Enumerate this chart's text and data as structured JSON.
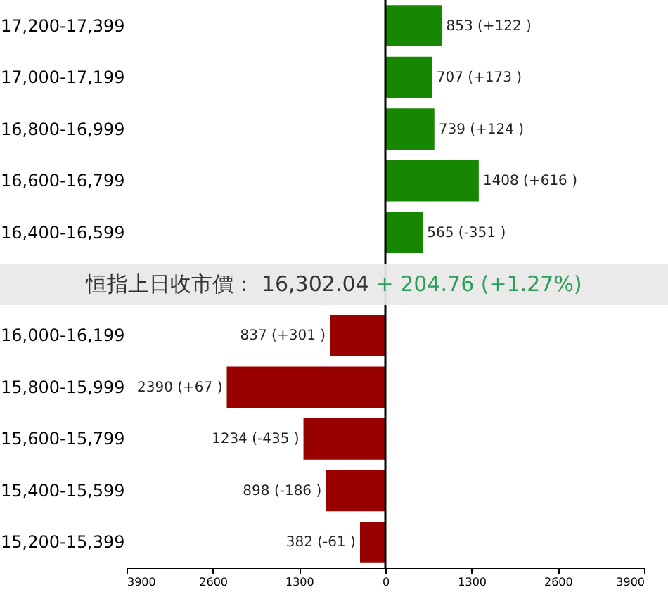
{
  "chart_data": {
    "type": "bar",
    "orientation": "horizontal",
    "categories": [
      "17,200-17,399",
      "17,000-17,199",
      "16,800-16,999",
      "16,600-16,799",
      "16,400-16,599",
      "16,000-16,199",
      "15,800-15,999",
      "15,600-15,799",
      "15,400-15,599",
      "15,200-15,399"
    ],
    "values": [
      853,
      707,
      739,
      1408,
      565,
      837,
      2390,
      1234,
      898,
      382
    ],
    "base": [
      0,
      0,
      0,
      0,
      0,
      -837,
      -2390,
      -1234,
      -898,
      -382
    ],
    "ref_lines": [
      {
        "axis": "x",
        "value": 0,
        "color": "#000000"
      }
    ],
    "colors": [
      "#178600",
      "#178600",
      "#178600",
      "#178600",
      "#178600",
      "#990000",
      "#990000",
      "#990000",
      "#990000",
      "#990000"
    ],
    "value_labels": [
      "853 (+122 )",
      "707 (+173 )",
      "739 (+124 )",
      "1408 (+616 )",
      "565 (-351 )",
      "837 (+301 )",
      "2390 (+67 )",
      "1234 (-435 )",
      "898 (-186 )",
      "382 (-61 )"
    ],
    "xlim": [
      -3900,
      3900
    ],
    "xticks": [
      {
        "value": -3900,
        "label": "3900"
      },
      {
        "value": -2600,
        "label": "2600"
      },
      {
        "value": -1300,
        "label": "1300"
      },
      0,
      1300,
      2600,
      3900
    ],
    "grid": false,
    "annotations": [
      "恒指上日收市價： 16,302.04",
      "+ 204.76 (+1.27%)"
    ]
  }
}
